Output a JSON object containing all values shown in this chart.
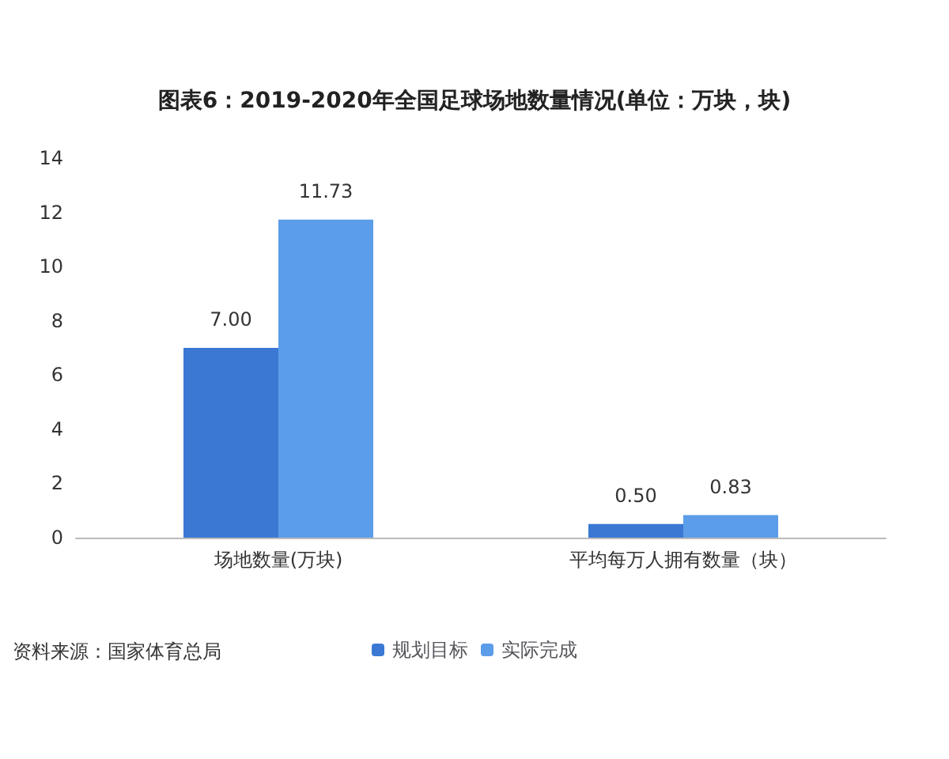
{
  "chart_data": {
    "type": "bar",
    "title": "图表6：2019-2020年全国足球场地数量情况(单位：万块，块)",
    "categories": [
      "场地数量(万块)",
      "平均每万人拥有数量（块）"
    ],
    "series": [
      {
        "name": "规划目标",
        "color": "#3a78d4",
        "values": [
          7.0,
          0.5
        ],
        "value_labels": [
          "7.00",
          "0.50"
        ]
      },
      {
        "name": "实际完成",
        "color": "#5b9de8",
        "values": [
          11.73,
          0.83
        ],
        "value_labels": [
          "11.73",
          "0.83"
        ]
      }
    ],
    "ylim": [
      0,
      14
    ],
    "yticks": [
      0,
      2,
      4,
      6,
      8,
      10,
      12,
      14
    ],
    "grid": false,
    "legend": "bottom",
    "annotations": [
      "资料来源：国家体育总局"
    ]
  }
}
